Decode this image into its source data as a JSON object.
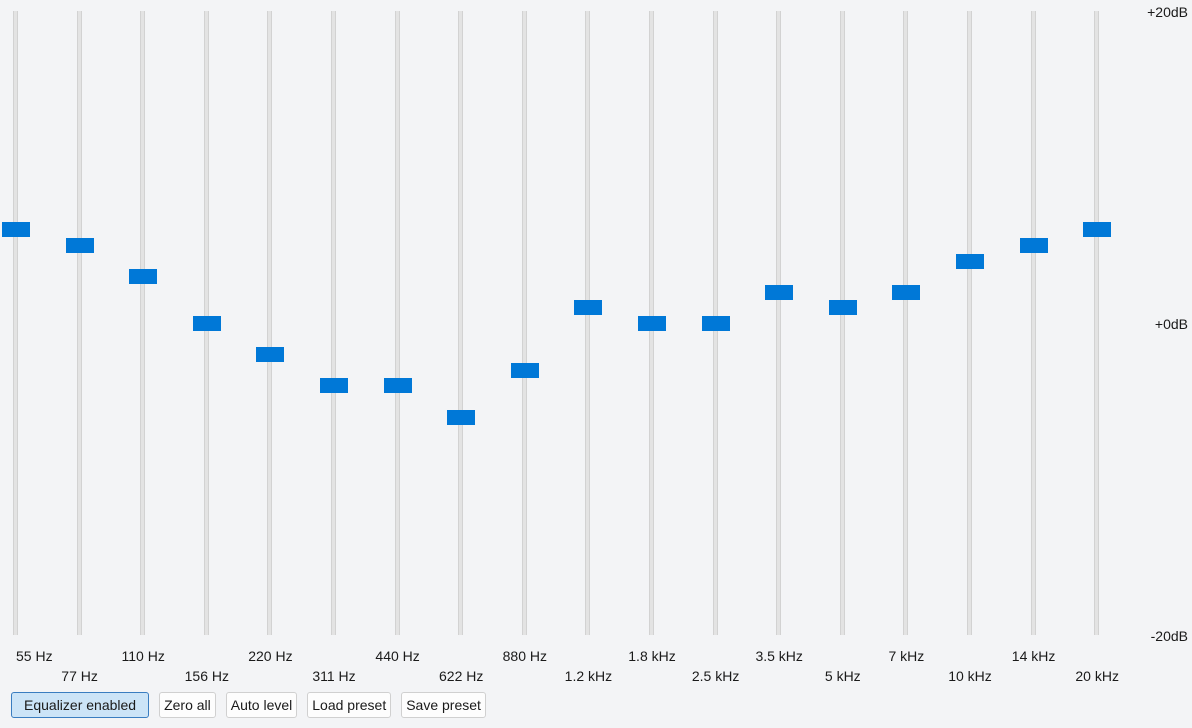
{
  "db_scale": {
    "max_label": "+20dB",
    "mid_label": "+0dB",
    "min_label": "-20dB",
    "max": 20,
    "min": -20
  },
  "bands": [
    {
      "label": "55 Hz",
      "gain_db": 6
    },
    {
      "label": "77 Hz",
      "gain_db": 5
    },
    {
      "label": "110 Hz",
      "gain_db": 3
    },
    {
      "label": "156 Hz",
      "gain_db": 0
    },
    {
      "label": "220 Hz",
      "gain_db": -2
    },
    {
      "label": "311 Hz",
      "gain_db": -4
    },
    {
      "label": "440 Hz",
      "gain_db": -4
    },
    {
      "label": "622 Hz",
      "gain_db": -6
    },
    {
      "label": "880 Hz",
      "gain_db": -3
    },
    {
      "label": "1.2 kHz",
      "gain_db": 1
    },
    {
      "label": "1.8 kHz",
      "gain_db": 0
    },
    {
      "label": "2.5 kHz",
      "gain_db": 0
    },
    {
      "label": "3.5 kHz",
      "gain_db": 2
    },
    {
      "label": "5 kHz",
      "gain_db": 1
    },
    {
      "label": "7 kHz",
      "gain_db": 2
    },
    {
      "label": "10 kHz",
      "gain_db": 4
    },
    {
      "label": "14 kHz",
      "gain_db": 5
    },
    {
      "label": "20 kHz",
      "gain_db": 6
    }
  ],
  "toolbar": {
    "equalizer_enabled": "Equalizer enabled",
    "zero_all": "Zero all",
    "auto_level": "Auto level",
    "load_preset": "Load preset",
    "save_preset": "Save preset"
  },
  "colors": {
    "handle": "#0078d7",
    "track": "#e3e3e3",
    "background": "#f3f4f6",
    "toggle_on": "#cce4f7"
  }
}
